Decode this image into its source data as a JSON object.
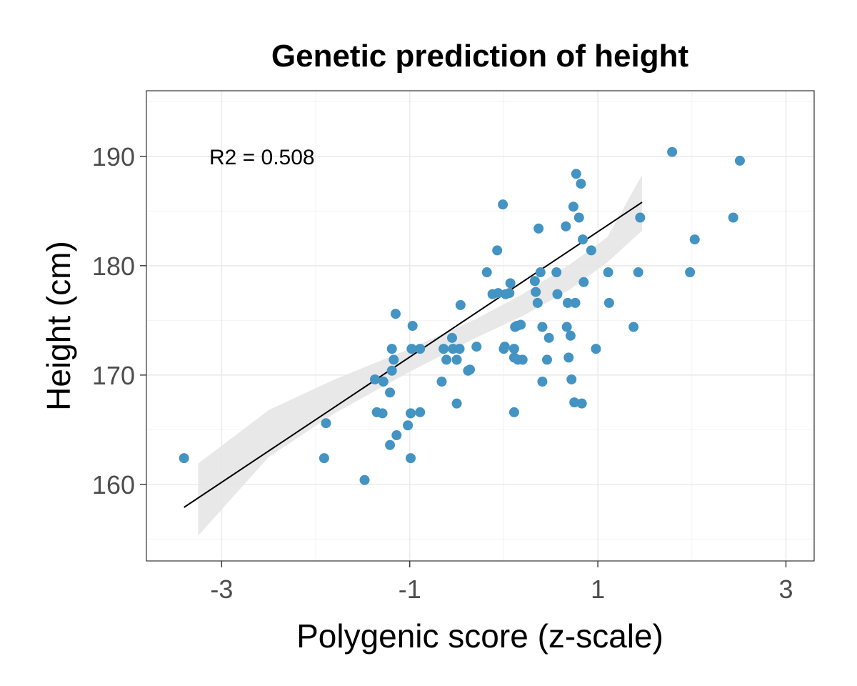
{
  "chart_data": {
    "type": "scatter",
    "title": "Genetic prediction of height",
    "xlabel": "Polygenic score (z-scale)",
    "ylabel": "Height (cm)",
    "xlim": [
      -3.8,
      3.3
    ],
    "ylim": [
      153,
      196
    ],
    "x_ticks": [
      -3,
      -1,
      1,
      3
    ],
    "x_tick_labels": [
      "-3",
      "-1",
      "1",
      "3"
    ],
    "y_ticks": [
      160,
      170,
      180,
      190
    ],
    "y_tick_labels": [
      "160",
      "170",
      "180",
      "190"
    ],
    "grid": true,
    "annotation": "R2 = 0.508",
    "point_color": "#4393c3",
    "regression_line": {
      "x": [
        -3.4,
        1.47
      ],
      "y": [
        157.9,
        185.8
      ]
    },
    "confidence_band": {
      "x": [
        -3.25,
        -2.5,
        -1.8,
        -1.0,
        -0.3,
        0.2,
        0.7,
        1.1,
        1.47
      ],
      "lower": [
        155.3,
        162.5,
        166.5,
        170.3,
        173.4,
        175.4,
        177.8,
        180.3,
        183.2
      ],
      "upper": [
        161.9,
        166.8,
        169.6,
        172.4,
        175.1,
        177.4,
        180.1,
        182.6,
        188.3
      ]
    },
    "series": [
      {
        "x": [
          -3.4,
          -1.89,
          -1.91,
          -1.48,
          -1.37,
          -1.35,
          -1.28,
          -1.29,
          -1.21,
          -1.21,
          -1.19,
          -1.19,
          -1.17,
          -1.15,
          -1.14,
          -1.02,
          -0.99,
          -0.99,
          -0.98,
          -0.97,
          -0.89,
          -0.89,
          -0.66,
          -0.64,
          -0.61,
          -0.55,
          -0.54,
          -0.5,
          -0.5,
          -0.47,
          -0.46,
          -0.38,
          -0.36,
          -0.29,
          -0.18,
          -0.12,
          -0.07,
          -0.06,
          -0.01,
          0.0,
          0.01,
          0.02,
          0.07,
          0.06,
          0.11,
          0.11,
          0.11,
          0.12,
          0.14,
          0.15,
          0.18,
          0.2,
          0.33,
          0.34,
          0.36,
          0.37,
          0.39,
          0.41,
          0.41,
          0.46,
          0.48,
          0.56,
          0.57,
          0.66,
          0.67,
          0.68,
          0.69,
          0.71,
          0.72,
          0.74,
          0.75,
          0.76,
          0.77,
          0.8,
          0.82,
          0.83,
          0.84,
          0.85,
          0.93,
          0.98,
          1.11,
          1.12,
          1.38,
          1.43,
          1.45,
          1.79,
          1.98,
          2.03,
          2.44,
          2.51
        ],
        "y": [
          162.4,
          165.6,
          162.4,
          160.4,
          169.6,
          166.6,
          169.4,
          166.5,
          163.6,
          168.4,
          172.4,
          170.4,
          171.4,
          175.6,
          164.5,
          165.4,
          162.4,
          166.5,
          172.4,
          174.5,
          166.6,
          172.4,
          169.4,
          172.4,
          171.4,
          173.4,
          172.4,
          167.4,
          171.4,
          172.4,
          176.4,
          170.4,
          170.5,
          172.6,
          179.4,
          177.4,
          181.4,
          177.5,
          185.6,
          172.4,
          172.6,
          177.4,
          178.4,
          177.5,
          166.6,
          171.6,
          172.4,
          174.4,
          174.5,
          171.4,
          174.6,
          171.4,
          178.6,
          177.6,
          176.6,
          183.4,
          179.4,
          169.4,
          174.4,
          171.4,
          173.4,
          179.4,
          177.4,
          183.6,
          174.4,
          176.6,
          171.6,
          173.6,
          169.6,
          185.4,
          167.5,
          176.6,
          188.4,
          184.4,
          187.5,
          167.4,
          182.4,
          178.5,
          181.4,
          172.4,
          179.4,
          176.6,
          174.4,
          179.4,
          184.4,
          190.4,
          179.4,
          182.4,
          184.4,
          189.6
        ]
      }
    ]
  }
}
